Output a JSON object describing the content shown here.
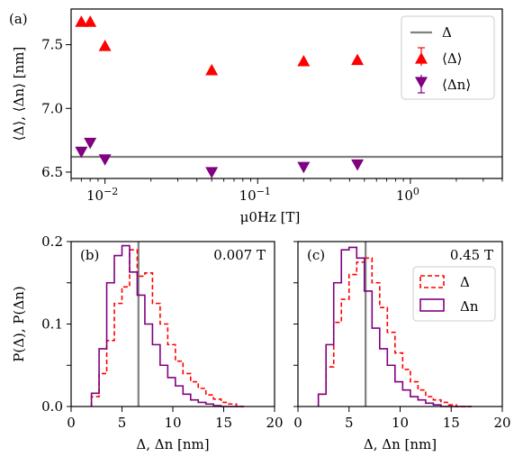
{
  "chart_data": [
    {
      "panel": "(a)",
      "type": "scatter",
      "xscale": "log",
      "xlim": [
        0.006,
        4
      ],
      "ylim": [
        6.45,
        7.78
      ],
      "xlabel": "μ0Hz [T]",
      "ylabel": "⟨Δ⟩, ⟨Δn⟩ [nm]",
      "xticks": [
        {
          "value": 0.01,
          "base": "10",
          "exp": "−2"
        },
        {
          "value": 0.1,
          "base": "10",
          "exp": "−1"
        },
        {
          "value": 1,
          "base": "10",
          "exp": "0"
        }
      ],
      "yticks": [
        {
          "value": 6.5,
          "label": "6.5"
        },
        {
          "value": 7.0,
          "label": "7.0"
        },
        {
          "value": 7.5,
          "label": "7.5"
        }
      ],
      "hline": {
        "name": "Δ0",
        "y": 6.62,
        "color": "#808080"
      },
      "series": [
        {
          "name": "⟨Δ⟩",
          "marker": "triangle-up",
          "color": "#ff0000",
          "x": [
            0.007,
            0.008,
            0.01,
            0.05,
            0.2,
            0.45
          ],
          "y": [
            7.68,
            7.68,
            7.49,
            7.3,
            7.37,
            7.38
          ]
        },
        {
          "name": "⟨Δn⟩",
          "marker": "triangle-down",
          "color": "#800080",
          "x": [
            0.007,
            0.008,
            0.01,
            0.05,
            0.2,
            0.45
          ],
          "y": [
            6.66,
            6.73,
            6.6,
            6.5,
            6.54,
            6.56
          ]
        }
      ],
      "legend": "top-right"
    },
    {
      "panel": "(b)",
      "type": "histogram",
      "annotation": "0.007 T",
      "xlim": [
        0,
        20
      ],
      "ylim": [
        0,
        0.2
      ],
      "xlabel": "Δ, Δn [nm]",
      "ylabel": "P(Δ), P(Δn)",
      "xticks": [
        0,
        5,
        10,
        15,
        20
      ],
      "yticks": [
        {
          "value": 0.0,
          "label": "0.0"
        },
        {
          "value": 0.1,
          "label": "0.1"
        },
        {
          "value": 0.2,
          "label": "0.2"
        }
      ],
      "vline": {
        "x": 6.62,
        "color": "#808080"
      },
      "bin_edges": [
        2,
        2.75,
        3.5,
        4.25,
        5,
        5.75,
        6.5,
        7.25,
        8,
        8.75,
        9.5,
        10.25,
        11,
        11.75,
        12.5,
        13.25,
        14,
        14.75,
        15.5,
        16.25,
        17
      ],
      "series": [
        {
          "name": "Δ",
          "style": "dashed",
          "color": "#ff0000",
          "values": [
            0.012,
            0.04,
            0.08,
            0.125,
            0.145,
            0.19,
            0.158,
            0.162,
            0.125,
            0.1,
            0.075,
            0.055,
            0.04,
            0.03,
            0.022,
            0.014,
            0.009,
            0.005,
            0.003,
            0
          ]
        },
        {
          "name": "Δn",
          "style": "solid",
          "color": "#800080",
          "values": [
            0.016,
            0.07,
            0.15,
            0.183,
            0.195,
            0.163,
            0.135,
            0.1,
            0.075,
            0.05,
            0.035,
            0.025,
            0.015,
            0.008,
            0.005,
            0.003,
            0.001,
            0,
            0,
            0
          ]
        }
      ]
    },
    {
      "panel": "(c)",
      "type": "histogram",
      "annotation": "0.45 T",
      "xlim": [
        0,
        20
      ],
      "ylim": [
        0,
        0.2
      ],
      "xlabel": "Δ, Δn [nm]",
      "xticks": [
        0,
        5,
        10,
        15,
        20
      ],
      "vline": {
        "x": 6.62,
        "color": "#808080"
      },
      "bin_edges": [
        2,
        2.75,
        3.5,
        4.25,
        5,
        5.75,
        6.5,
        7.25,
        8,
        8.75,
        9.5,
        10.25,
        11,
        11.75,
        12.5,
        13.25,
        14,
        14.75,
        15.5,
        16.25,
        17
      ],
      "series": [
        {
          "name": "Δ",
          "style": "dashed",
          "color": "#ff0000",
          "values": [
            0.015,
            0.048,
            0.102,
            0.13,
            0.16,
            0.175,
            0.18,
            0.15,
            0.12,
            0.09,
            0.065,
            0.045,
            0.03,
            0.02,
            0.012,
            0.008,
            0.005,
            0.002,
            0,
            0
          ]
        },
        {
          "name": "Δn",
          "style": "solid",
          "color": "#800080",
          "values": [
            0.015,
            0.075,
            0.15,
            0.19,
            0.193,
            0.18,
            0.14,
            0.095,
            0.07,
            0.05,
            0.03,
            0.02,
            0.012,
            0.008,
            0.004,
            0.002,
            0,
            0,
            0,
            0
          ]
        }
      ],
      "legend": "top-right"
    }
  ]
}
